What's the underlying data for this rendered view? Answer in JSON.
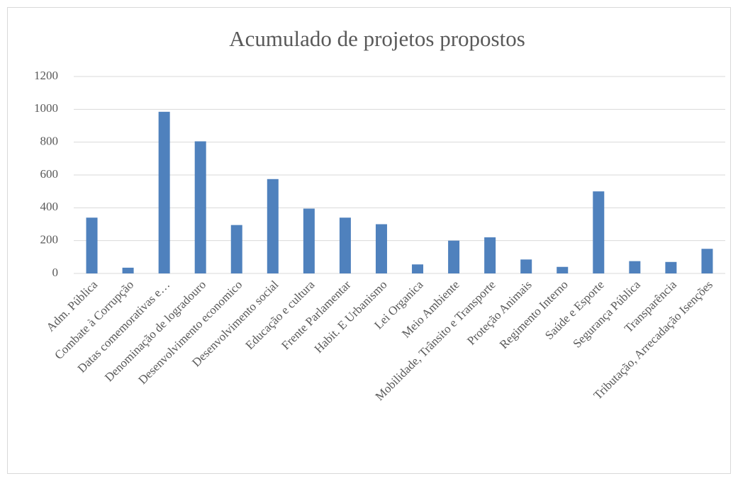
{
  "chart_data": {
    "type": "bar",
    "title": "Acumulado de projetos propostos",
    "categories": [
      "Adm. Pública",
      "Combate à Corrupção",
      "Datas comemorativas e…",
      "Denominação de logradouro",
      "Desenvolvimento economico",
      "Desenvolvimento social",
      "Educação e cultura",
      "Frente Parlamentar",
      "Habit. E Urbanismo",
      "Lei Organica",
      "Meio Ambiente",
      "Mobilidade, Trânsito e Transporte",
      "Proteção Animais",
      "Regimento Interno",
      "Saúde e Esporte",
      "Segurança Pública",
      "Transparência",
      "Tributação, Arrecadação Isenções"
    ],
    "values": [
      340,
      35,
      985,
      805,
      295,
      575,
      395,
      340,
      300,
      55,
      200,
      220,
      85,
      40,
      500,
      75,
      70,
      150
    ],
    "color": "#4f81bd",
    "ylim": [
      0,
      1200
    ],
    "yticks": [
      0,
      200,
      400,
      600,
      800,
      1000,
      1200
    ],
    "grid": true
  }
}
